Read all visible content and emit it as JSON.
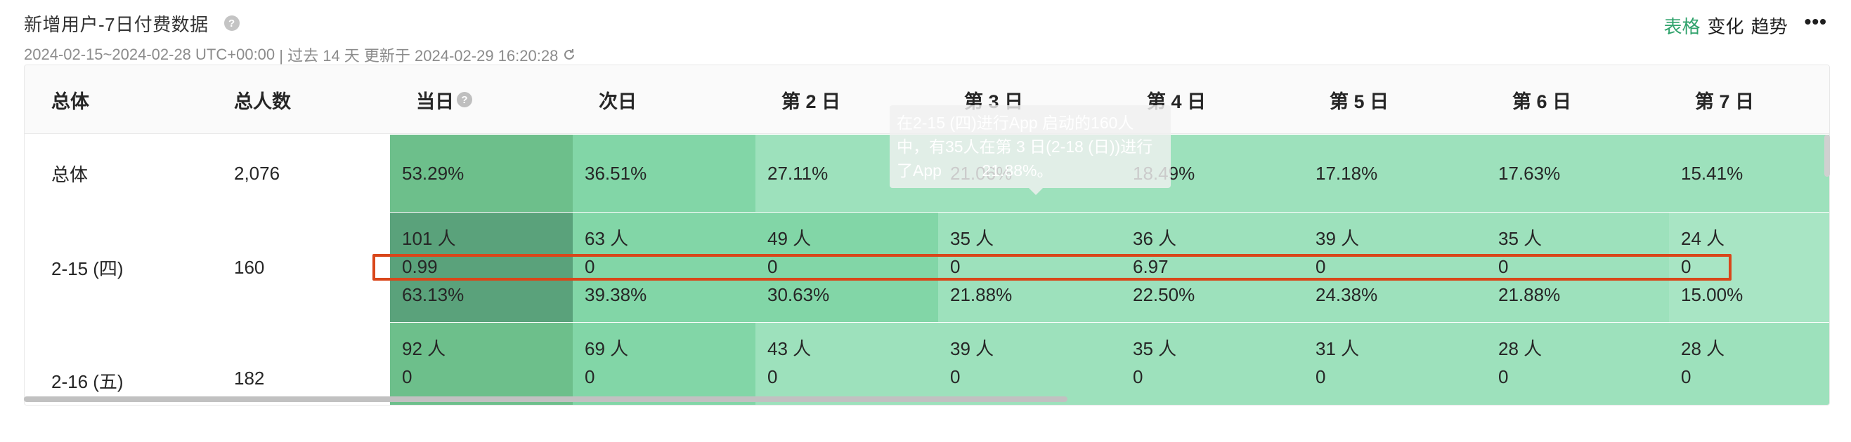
{
  "header": {
    "title": "新增用户-7日付费数据",
    "help_glyph": "?",
    "date_range": "2024-02-15~2024-02-28 UTC+00:00",
    "meta": " | 过去 14 天 更新于 2024-02-29 16:20:28",
    "views": [
      {
        "label": "表格",
        "active": true
      },
      {
        "label": "变化",
        "active": false
      },
      {
        "label": "趋势",
        "active": false
      }
    ],
    "more_glyph": "•••"
  },
  "table": {
    "columns": [
      "总体",
      "总人数",
      "当日",
      "次日",
      "第 2 日",
      "第 3 日",
      "第 4 日",
      "第 5 日",
      "第 6 日",
      "第 7 日"
    ],
    "info_glyph": "?",
    "rows": [
      {
        "label": "总体",
        "total": "2,076",
        "cells": [
          {
            "value": "53.29%"
          },
          {
            "value": "36.51%"
          },
          {
            "value": "27.11%"
          },
          {
            "value": "21.06%"
          },
          {
            "value": "18.49%"
          },
          {
            "value": "17.18%"
          },
          {
            "value": "17.63%"
          },
          {
            "value": "15.41%"
          }
        ]
      },
      {
        "label": "2-15 (四)",
        "total": "160",
        "cells": [
          {
            "count": "101 人",
            "amount": "0.99",
            "rate": "63.13%"
          },
          {
            "count": "63 人",
            "amount": "0",
            "rate": "39.38%"
          },
          {
            "count": "49 人",
            "amount": "0",
            "rate": "30.63%"
          },
          {
            "count": "35 人",
            "amount": "0",
            "rate": "21.88%"
          },
          {
            "count": "36 人",
            "amount": "6.97",
            "rate": "22.50%"
          },
          {
            "count": "39 人",
            "amount": "0",
            "rate": "24.38%"
          },
          {
            "count": "35 人",
            "amount": "0",
            "rate": "21.88%"
          },
          {
            "count": "24 人",
            "amount": "0",
            "rate": "15.00%"
          }
        ]
      },
      {
        "label": "2-16 (五)",
        "total": "182",
        "cells": [
          {
            "count": "92 人",
            "amount": "0"
          },
          {
            "count": "69 人",
            "amount": "0"
          },
          {
            "count": "43 人",
            "amount": "0"
          },
          {
            "count": "39 人",
            "amount": "0"
          },
          {
            "count": "35 人",
            "amount": "0"
          },
          {
            "count": "31 人",
            "amount": "0"
          },
          {
            "count": "28 人",
            "amount": "0"
          },
          {
            "count": "28 人",
            "amount": "0"
          }
        ]
      }
    ]
  },
  "tooltip": {
    "lines": [
      "在2-15 (四)进行App 启动的160人",
      "中，有35人在第 3 日(2-18 (日))进行",
      "了App         21.88%。"
    ]
  },
  "colors": {
    "accent": "#2fa26b",
    "highlight": "#d9461a",
    "cell_shades": {
      "r0": [
        "#6dbf8b",
        "#82d6a7",
        "#9de1bc",
        "#9de1bc",
        "#9de1bc",
        "#9de1bc",
        "#9de1bc",
        "#9de1bc"
      ],
      "r1": [
        "#5aa27b",
        "#82d6a7",
        "#82d6a7",
        "#9de1bc",
        "#9de1bc",
        "#9de1bc",
        "#9de1bc",
        "#a8e5c4"
      ],
      "r2": [
        "#6dbf8b",
        "#82d6a7",
        "#9de1bc",
        "#9de1bc",
        "#9de1bc",
        "#9de1bc",
        "#9de1bc",
        "#9de1bc"
      ]
    }
  }
}
